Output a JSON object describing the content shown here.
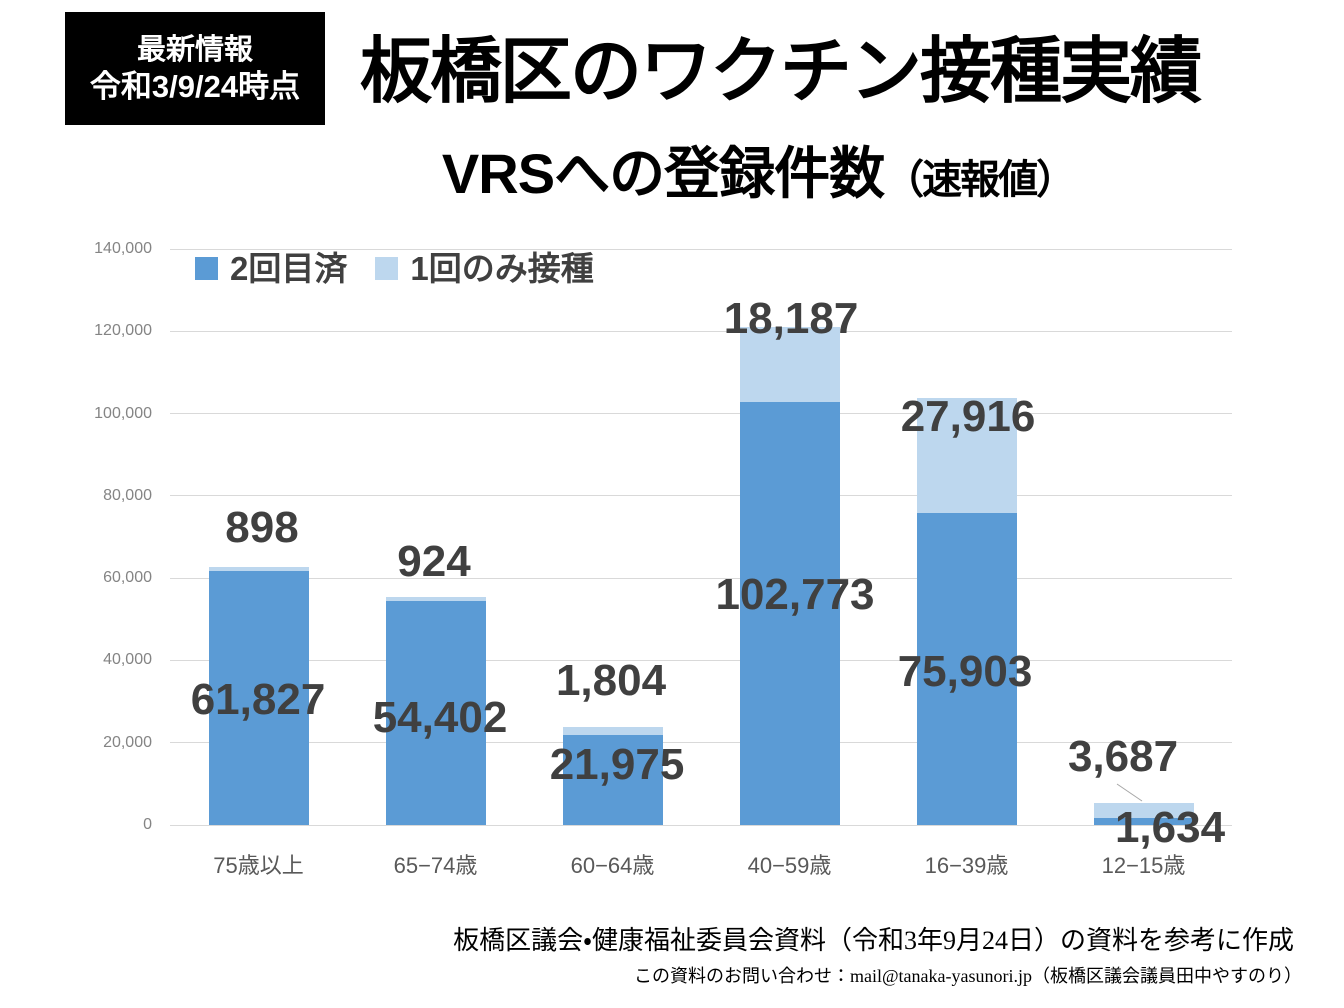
{
  "badge": {
    "line1": "最新情報",
    "line2": "令和3/9/24時点"
  },
  "title": "板橋区のワクチン接種実績",
  "subtitle": {
    "main": "VRSへの登録件数",
    "paren": "（速報値）"
  },
  "chart_data": {
    "type": "bar",
    "stacked": true,
    "title": "VRSへの登録件数（速報値）",
    "categories": [
      "75歳以上",
      "65−74歳",
      "60−64歳",
      "40−59歳",
      "16−39歳",
      "12−15歳"
    ],
    "series": [
      {
        "name": "2回目済",
        "color": "#5b9bd5",
        "values": [
          61827,
          54402,
          21975,
          102773,
          75903,
          1634
        ],
        "labels": [
          "61,827",
          "54,402",
          "21,975",
          "102,773",
          "75,903",
          "1,634"
        ]
      },
      {
        "name": "1回のみ接種",
        "color": "#bdd7ee",
        "values": [
          898,
          924,
          1804,
          18187,
          27916,
          3687
        ],
        "labels": [
          "898",
          "924",
          "1,804",
          "18,187",
          "27,916",
          "3,687"
        ]
      }
    ],
    "ylim": [
      0,
      140000
    ],
    "ytick_step": 20000,
    "ytick_labels": [
      "0",
      "20,000",
      "40,000",
      "60,000",
      "80,000",
      "100,000",
      "120,000",
      "140,000"
    ],
    "grid": true,
    "legend_position": "top-left"
  },
  "colors": {
    "dose2_blue": "#5b9bd5",
    "dose1_lightblue": "#bdd7ee",
    "gridline": "#d9d9d9",
    "data_label": "#404040",
    "axis_tick": "#848484",
    "category_label": "#595959",
    "badge_bg": "#000000",
    "badge_text": "#ffffff"
  },
  "footer": {
    "line1": "板橋区議会・健康福祉委員会資料（令和3年9月24日）の資料を参考に作成",
    "line2": "この資料のお問い合わせ：mail@tanaka-yasunori.jp（板橋区議会議員田中やすのり）"
  }
}
